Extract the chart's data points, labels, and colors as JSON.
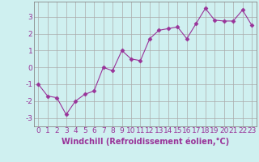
{
  "x": [
    0,
    1,
    2,
    3,
    4,
    5,
    6,
    7,
    8,
    9,
    10,
    11,
    12,
    13,
    14,
    15,
    16,
    17,
    18,
    19,
    20,
    21,
    22,
    23
  ],
  "y": [
    -1.0,
    -1.7,
    -1.8,
    -2.8,
    -2.0,
    -1.6,
    -1.4,
    0.0,
    -0.2,
    1.0,
    0.5,
    0.4,
    1.7,
    2.2,
    2.3,
    2.4,
    1.7,
    2.6,
    3.5,
    2.8,
    2.75,
    2.75,
    3.4,
    2.5
  ],
  "line_color": "#993399",
  "marker": "D",
  "marker_size": 2.5,
  "bg_color": "#cff0f0",
  "grid_color": "#aaaaaa",
  "xlabel": "Windchill (Refroidissement éolien,°C)",
  "xlabel_fontsize": 7,
  "xlabel_color": "#993399",
  "ylabel_ticks": [
    -3,
    -2,
    -1,
    0,
    1,
    2,
    3
  ],
  "xticks": [
    0,
    1,
    2,
    3,
    4,
    5,
    6,
    7,
    8,
    9,
    10,
    11,
    12,
    13,
    14,
    15,
    16,
    17,
    18,
    19,
    20,
    21,
    22,
    23
  ],
  "ylim": [
    -3.5,
    3.9
  ],
  "xlim": [
    -0.5,
    23.5
  ],
  "tick_fontsize": 6.5,
  "tick_color": "#993399"
}
